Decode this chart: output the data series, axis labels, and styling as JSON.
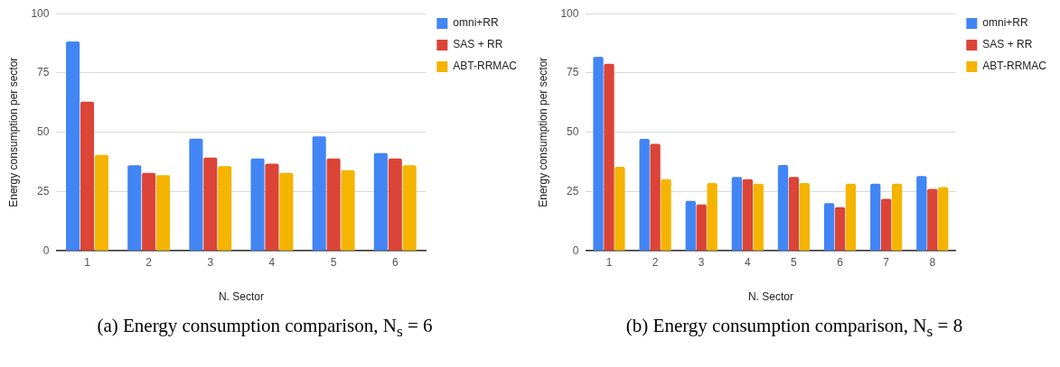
{
  "chart_data": [
    {
      "type": "bar",
      "title": "(a)  Energy consumption comparison, N$_{s}$ = 6",
      "xlabel": "N. Sector",
      "ylabel": "Energy consumption per sector",
      "categories": [
        "1",
        "2",
        "3",
        "4",
        "5",
        "6"
      ],
      "series": [
        {
          "name": "omni+RR",
          "color": "#4285f4",
          "values": [
            88.3,
            36.1,
            47.3,
            39.0,
            48.3,
            41.2
          ]
        },
        {
          "name": "SAS + RR",
          "color": "#db4437",
          "values": [
            62.9,
            32.9,
            39.3,
            36.8,
            39.0,
            39.0
          ]
        },
        {
          "name": "ABT-RRMAC",
          "color": "#f4b400",
          "values": [
            40.5,
            31.9,
            35.7,
            32.9,
            34.0,
            36.1
          ]
        }
      ],
      "ylim": [
        0,
        100
      ],
      "yticks": [
        0,
        25,
        50,
        75,
        100
      ],
      "grid": "y",
      "legend": "top right"
    },
    {
      "type": "bar",
      "title": "(b)  Energy consumption comparison, N$_{s}$ = 8",
      "xlabel": "N. Sector",
      "ylabel": "Energy consumption per sector",
      "categories": [
        "1",
        "2",
        "3",
        "4",
        "5",
        "6",
        "7",
        "8"
      ],
      "series": [
        {
          "name": "omni+RR",
          "color": "#4285f4",
          "values": [
            81.8,
            47.2,
            21.1,
            31.2,
            36.2,
            20.1,
            28.3,
            31.5
          ]
        },
        {
          "name": "SAS + RR",
          "color": "#db4437",
          "values": [
            78.9,
            45.1,
            19.6,
            30.2,
            31.2,
            18.4,
            21.9,
            26.1
          ]
        },
        {
          "name": "ABT-RRMAC",
          "color": "#f4b400",
          "values": [
            35.4,
            30.2,
            28.6,
            28.3,
            28.6,
            28.3,
            28.3,
            26.9
          ]
        }
      ],
      "ylim": [
        0,
        100
      ],
      "yticks": [
        0,
        25,
        50,
        75,
        100
      ],
      "grid": "y",
      "legend": "top right"
    }
  ]
}
